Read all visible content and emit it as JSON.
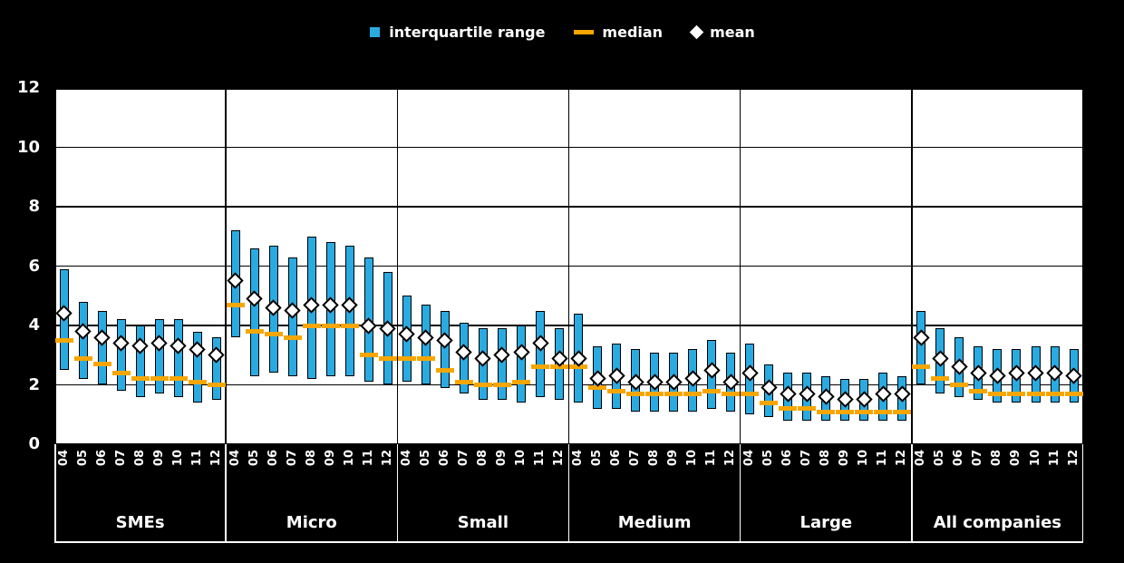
{
  "legend": {
    "items": [
      {
        "label": "interquartile range",
        "marker": "square",
        "color": "#29abe2"
      },
      {
        "label": "median",
        "marker": "dash",
        "color": "#f7a600"
      },
      {
        "label": "mean",
        "marker": "diamond",
        "color": "#ffffff"
      }
    ]
  },
  "chart_data": {
    "type": "boxplot",
    "ylim": [
      0,
      12
    ],
    "yticks": [
      0,
      2,
      4,
      6,
      8,
      10,
      12
    ],
    "grid": true,
    "legend_position": "top",
    "years": [
      "04",
      "05",
      "06",
      "07",
      "08",
      "09",
      "10",
      "11",
      "12"
    ],
    "colors": {
      "iqr_bar": "#29abe2",
      "median": "#f7a600",
      "mean_fill": "#ffffff",
      "mean_stroke": "#000000",
      "plot_bg": "#ffffff",
      "page_bg": "#000000",
      "gridline": "#000000",
      "axis_text": "#ffffff"
    },
    "groups": [
      {
        "label": "SMEs",
        "q1": [
          2.5,
          2.2,
          2.0,
          1.8,
          1.6,
          1.7,
          1.6,
          1.4,
          1.5
        ],
        "q3": [
          5.9,
          4.8,
          4.5,
          4.2,
          4.0,
          4.2,
          4.2,
          3.8,
          3.6
        ],
        "median": [
          3.5,
          2.9,
          2.7,
          2.4,
          2.2,
          2.2,
          2.2,
          2.1,
          2.0
        ],
        "mean": [
          4.4,
          3.8,
          3.6,
          3.4,
          3.3,
          3.4,
          3.3,
          3.2,
          3.0
        ]
      },
      {
        "label": "Micro",
        "q1": [
          3.6,
          2.3,
          2.4,
          2.3,
          2.2,
          2.3,
          2.3,
          2.1,
          2.0
        ],
        "q3": [
          7.2,
          6.6,
          6.7,
          6.3,
          7.0,
          6.8,
          6.7,
          6.3,
          5.8
        ],
        "median": [
          4.7,
          3.8,
          3.7,
          3.6,
          4.0,
          4.0,
          4.0,
          3.0,
          2.9
        ],
        "mean": [
          5.5,
          4.9,
          4.6,
          4.5,
          4.7,
          4.7,
          4.7,
          4.0,
          3.9
        ]
      },
      {
        "label": "Small",
        "q1": [
          2.1,
          2.0,
          1.9,
          1.7,
          1.5,
          1.5,
          1.4,
          1.6,
          1.5
        ],
        "q3": [
          5.0,
          4.7,
          4.5,
          4.1,
          3.9,
          3.9,
          4.0,
          4.5,
          3.9
        ],
        "median": [
          2.9,
          2.9,
          2.5,
          2.1,
          2.0,
          2.0,
          2.1,
          2.6,
          2.6
        ],
        "mean": [
          3.7,
          3.6,
          3.5,
          3.1,
          2.9,
          3.0,
          3.1,
          3.4,
          2.9
        ]
      },
      {
        "label": "Medium",
        "q1": [
          1.4,
          1.2,
          1.2,
          1.1,
          1.1,
          1.1,
          1.1,
          1.2,
          1.1
        ],
        "q3": [
          4.4,
          3.3,
          3.4,
          3.2,
          3.1,
          3.1,
          3.2,
          3.5,
          3.1
        ],
        "median": [
          2.6,
          1.9,
          1.8,
          1.7,
          1.7,
          1.7,
          1.7,
          1.8,
          1.7
        ],
        "mean": [
          2.9,
          2.2,
          2.3,
          2.1,
          2.1,
          2.1,
          2.2,
          2.5,
          2.1
        ]
      },
      {
        "label": "Large",
        "q1": [
          1.0,
          0.9,
          0.8,
          0.8,
          0.8,
          0.8,
          0.8,
          0.8,
          0.8
        ],
        "q3": [
          3.4,
          2.7,
          2.4,
          2.4,
          2.3,
          2.2,
          2.2,
          2.4,
          2.3
        ],
        "median": [
          1.7,
          1.4,
          1.2,
          1.2,
          1.1,
          1.1,
          1.1,
          1.1,
          1.1
        ],
        "mean": [
          2.4,
          1.9,
          1.7,
          1.7,
          1.6,
          1.5,
          1.5,
          1.7,
          1.7
        ]
      },
      {
        "label": "All companies",
        "q1": [
          2.0,
          1.7,
          1.6,
          1.5,
          1.4,
          1.4,
          1.4,
          1.4,
          1.4
        ],
        "q3": [
          4.5,
          3.9,
          3.6,
          3.3,
          3.2,
          3.2,
          3.3,
          3.3,
          3.2
        ],
        "median": [
          2.6,
          2.2,
          2.0,
          1.8,
          1.7,
          1.7,
          1.7,
          1.7,
          1.7
        ],
        "mean": [
          3.6,
          2.9,
          2.6,
          2.4,
          2.3,
          2.4,
          2.4,
          2.4,
          2.3
        ]
      }
    ]
  }
}
